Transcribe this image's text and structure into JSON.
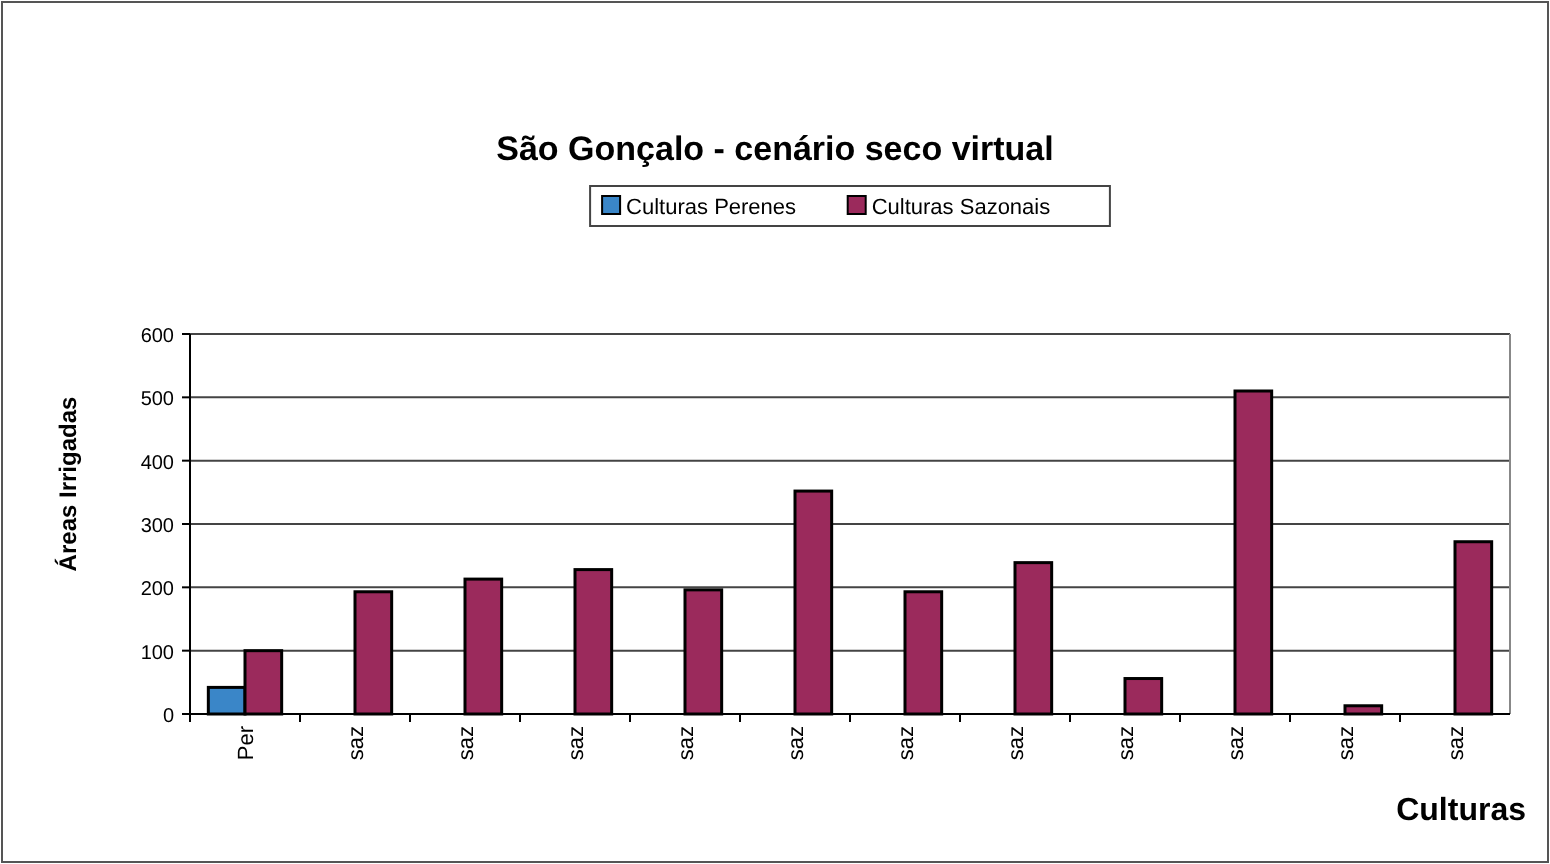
{
  "chart_data": {
    "type": "bar",
    "title": "São Gonçalo - cenário seco virtual",
    "xlabel": "Culturas",
    "ylabel": "Áreas Irrigadas",
    "categories": [
      "Per",
      "saz",
      "saz",
      "saz",
      "saz",
      "saz",
      "saz",
      "saz",
      "saz",
      "saz",
      "saz",
      "saz"
    ],
    "series": [
      {
        "name": "Culturas Perenes",
        "color": "#3a86c8",
        "values": [
          42,
          null,
          null,
          null,
          null,
          null,
          null,
          null,
          null,
          null,
          null,
          null
        ]
      },
      {
        "name": "Culturas Sazonais",
        "color": "#9b2a5c",
        "values": [
          100,
          193,
          213,
          228,
          196,
          352,
          193,
          239,
          56,
          510,
          13,
          272
        ]
      }
    ],
    "ylim": [
      0,
      600
    ],
    "yticks": [
      0,
      100,
      200,
      300,
      400,
      500,
      600
    ],
    "grid": "y",
    "legend": "top"
  }
}
